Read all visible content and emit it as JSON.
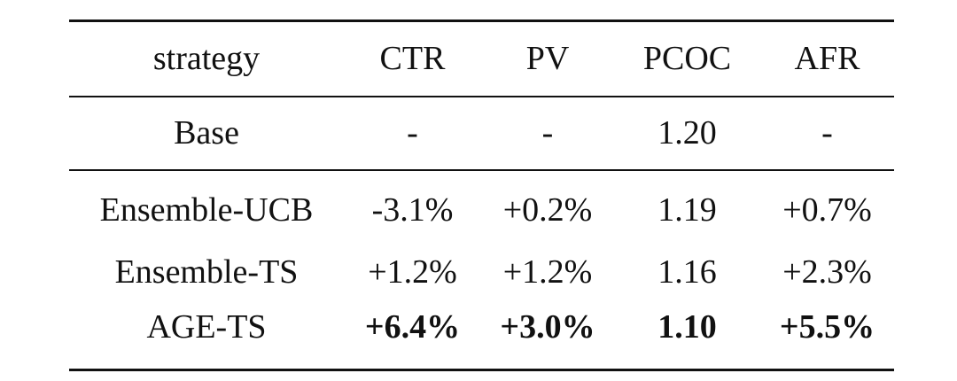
{
  "table": {
    "headers": [
      "strategy",
      "CTR",
      "PV",
      "PCOC",
      "AFR"
    ],
    "base": {
      "strategy": "Base",
      "ctr": "-",
      "pv": "-",
      "pcoc": "1.20",
      "afr": "-"
    },
    "rows": [
      {
        "strategy": "Ensemble-UCB",
        "ctr": "-3.1%",
        "pv": "+0.2%",
        "pcoc": "1.19",
        "afr": "+0.7%"
      },
      {
        "strategy": "Ensemble-TS",
        "ctr": "+1.2%",
        "pv": "+1.2%",
        "pcoc": "1.16",
        "afr": "+2.3%"
      },
      {
        "strategy": "AGE-TS",
        "ctr": "+6.4%",
        "pv": "+3.0%",
        "pcoc": "1.10",
        "afr": "+5.5%"
      }
    ]
  }
}
